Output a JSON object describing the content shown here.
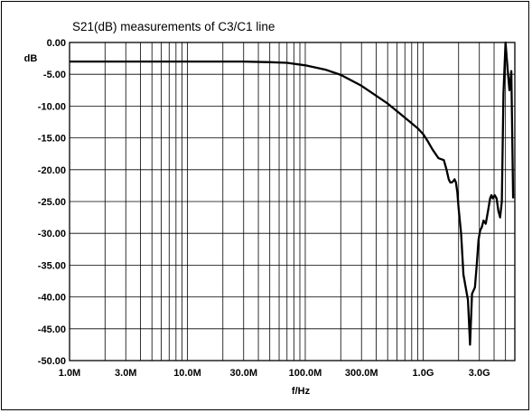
{
  "chart_data": {
    "type": "line",
    "title": "S21(dB) measurements of C3/C1 line",
    "xlabel": "f/Hz",
    "ylabel": "dB",
    "x_scale": "log",
    "xlim": [
      1000000,
      6000000000
    ],
    "ylim": [
      -50,
      0
    ],
    "grid": true,
    "y_ticks": [
      {
        "value": 0,
        "label": "0.00"
      },
      {
        "value": -5,
        "label": "-5.00"
      },
      {
        "value": -10,
        "label": "-10.00"
      },
      {
        "value": -15,
        "label": "-15.00"
      },
      {
        "value": -20,
        "label": "-20.00"
      },
      {
        "value": -25,
        "label": "-25.00"
      },
      {
        "value": -30,
        "label": "-30.00"
      },
      {
        "value": -35,
        "label": "-35.00"
      },
      {
        "value": -40,
        "label": "-40.00"
      },
      {
        "value": -45,
        "label": "-45.00"
      },
      {
        "value": -50,
        "label": "-50.00"
      }
    ],
    "x_ticks": [
      {
        "value": 1000000,
        "label": "1.0M"
      },
      {
        "value": 3000000,
        "label": "3.0M"
      },
      {
        "value": 10000000,
        "label": "10.0M"
      },
      {
        "value": 30000000,
        "label": "30.0M"
      },
      {
        "value": 100000000,
        "label": "100.0M"
      },
      {
        "value": 300000000,
        "label": "300.0M"
      },
      {
        "value": 1000000000,
        "label": "1.0G"
      },
      {
        "value": 3000000000,
        "label": "3.0G"
      }
    ],
    "series": [
      {
        "color": "#000000",
        "x": [
          1000000,
          3000000,
          10000000,
          20000000,
          30000000,
          50000000,
          70000000,
          100000000,
          150000000,
          200000000,
          300000000,
          500000000,
          700000000,
          900000000,
          1000000000,
          1100000000,
          1200000000,
          1350000000,
          1500000000,
          1580000000,
          1650000000,
          1700000000,
          1750000000,
          1800000000,
          1850000000,
          1900000000,
          1950000000,
          2000000000,
          2100000000,
          2200000000,
          2400000000,
          2500000000,
          2600000000,
          2750000000,
          2850000000,
          2950000000,
          3050000000,
          3150000000,
          3250000000,
          3400000000,
          3550000000,
          3700000000,
          3800000000,
          3900000000,
          4050000000,
          4200000000,
          4350000000,
          4500000000,
          4650000000,
          4800000000,
          5000000000,
          5200000000,
          5400000000,
          5600000000,
          5800000000
        ],
        "y": [
          -3.0,
          -3.0,
          -3.0,
          -3.0,
          -3.0,
          -3.1,
          -3.2,
          -3.6,
          -4.3,
          -5.1,
          -6.8,
          -9.6,
          -11.8,
          -13.5,
          -14.4,
          -15.6,
          -16.8,
          -18.2,
          -18.5,
          -20.0,
          -21.5,
          -22.0,
          -22.0,
          -21.8,
          -21.5,
          -22.0,
          -23.5,
          -26.0,
          -30.0,
          -36.5,
          -40.5,
          -47.5,
          -39.5,
          -38.5,
          -35.0,
          -31.0,
          -29.5,
          -29.0,
          -28.0,
          -28.5,
          -26.5,
          -24.5,
          -24.0,
          -24.5,
          -24.0,
          -24.5,
          -26.5,
          -27.5,
          -25.0,
          -8.0,
          0.0,
          -4.0,
          -7.5,
          -4.5,
          -24.5
        ]
      }
    ]
  }
}
